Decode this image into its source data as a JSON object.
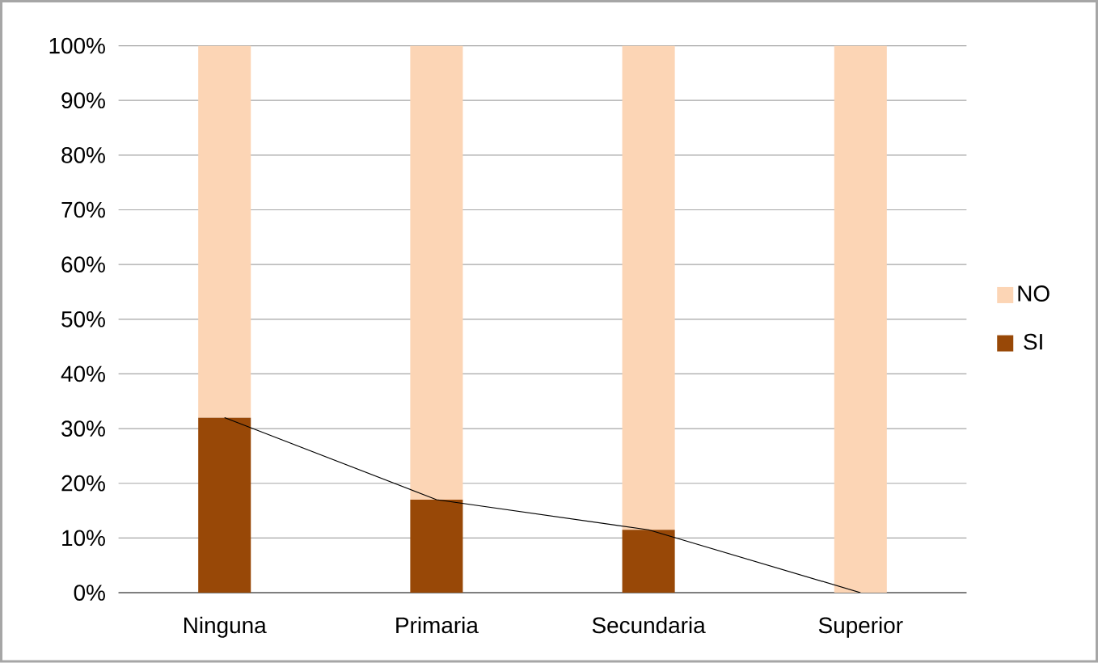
{
  "chart_data": {
    "type": "bar",
    "stacked": true,
    "categories": [
      "Ninguna",
      "Primaria",
      "Secundaria",
      "Superior"
    ],
    "series": [
      {
        "name": "SI",
        "color": "#984807",
        "values": [
          32,
          17,
          11.5,
          0
        ]
      },
      {
        "name": "NO",
        "color": "#fcd5b5",
        "values": [
          68,
          83,
          88.5,
          100
        ]
      },
      {
        "type": "line",
        "color": "#000000",
        "values": [
          32,
          17,
          11.5,
          0
        ]
      }
    ],
    "ylim": [
      0,
      100
    ],
    "yticks": [
      {
        "value": 0,
        "label": "0%"
      },
      {
        "value": 10,
        "label": "10%"
      },
      {
        "value": 20,
        "label": "20%"
      },
      {
        "value": 30,
        "label": "30%"
      },
      {
        "value": 40,
        "label": "40%"
      },
      {
        "value": 50,
        "label": "50%"
      },
      {
        "value": 60,
        "label": "60%"
      },
      {
        "value": 70,
        "label": "70%"
      },
      {
        "value": 80,
        "label": "80%"
      },
      {
        "value": 90,
        "label": "90%"
      },
      {
        "value": 100,
        "label": "100%"
      }
    ],
    "grid": "y",
    "legend": "right"
  }
}
